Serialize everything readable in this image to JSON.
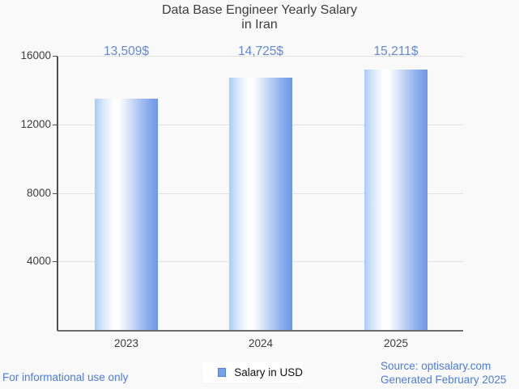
{
  "title": {
    "line1": "Data Base Engineer Yearly Salary",
    "line2": "in Iran"
  },
  "chart_data": {
    "type": "bar",
    "categories": [
      "2023",
      "2024",
      "2025"
    ],
    "series": [
      {
        "name": "Salary in USD",
        "values": [
          13509,
          14725,
          15211
        ]
      }
    ],
    "value_labels": [
      "13,509$",
      "14,725$",
      "15,211$"
    ],
    "title": "Data Base Engineer Yearly Salary in Iran",
    "xlabel": "",
    "ylabel": "",
    "ylim": [
      0,
      16000
    ],
    "yticks": [
      4000,
      8000,
      12000,
      16000
    ],
    "grid": "horizontal",
    "legend_position": "bottom"
  },
  "legend": {
    "label": "Salary in USD",
    "marker_color": "#73a1ec"
  },
  "footer": {
    "left": "For informational use only",
    "source": "Source: optisalary.com",
    "generated": "Generated February 2025"
  },
  "colors": {
    "background": "#f9f9f9",
    "bar_edge_blue": "#6e97e6",
    "bar_highlight": "#ffffff",
    "annotation_text": "#6389d6",
    "footer_text": "#4d7cd9",
    "axis_line": "#4f4f4f",
    "gridline": "#e2e2e2",
    "title_text": "#3d3d3d"
  }
}
